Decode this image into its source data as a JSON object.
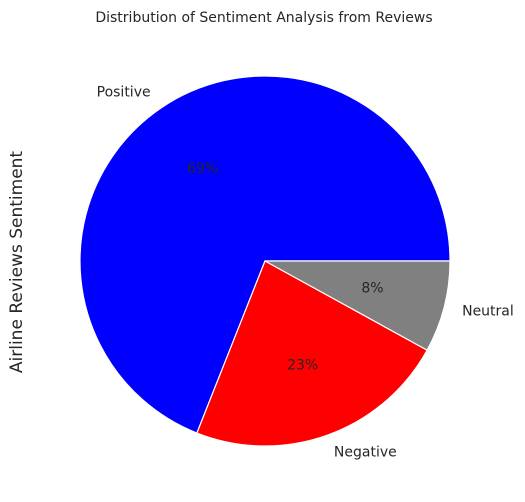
{
  "chart_data": {
    "type": "pie",
    "title": "Distribution of Sentiment Analysis from Reviews",
    "ylabel": "Airline Reviews Sentiment",
    "categories": [
      "Positive",
      "Negative",
      "Neutral"
    ],
    "values": [
      69,
      23,
      8
    ],
    "percent_labels": [
      "69%",
      "23%",
      "8%"
    ],
    "colors": [
      "#0000ff",
      "#ff0000",
      "#808080"
    ],
    "start_angle_deg": 0,
    "direction": "counterclockwise",
    "edge_color": "#ffffff",
    "legend": "none"
  }
}
